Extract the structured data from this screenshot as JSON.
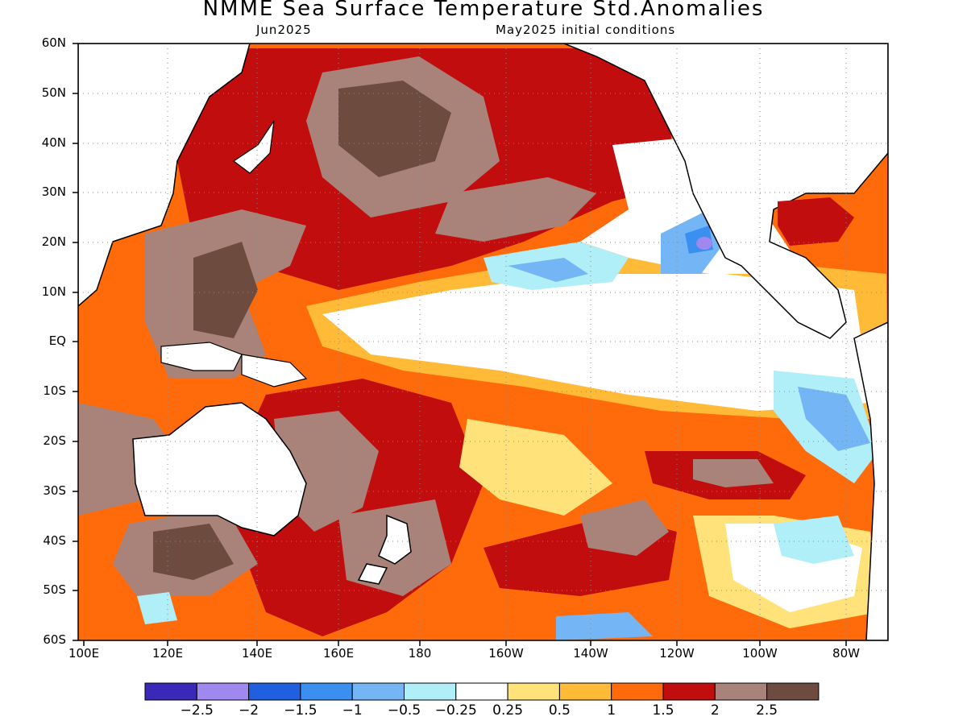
{
  "title": "NMME Sea Surface Temperature Std.Anomalies",
  "subtitle_left": "Jun2025",
  "subtitle_right": "May2025 initial conditions",
  "lat_labels": [
    "60N",
    "50N",
    "40N",
    "30N",
    "20N",
    "10N",
    "EQ",
    "10S",
    "20S",
    "30S",
    "40S",
    "50S",
    "60S"
  ],
  "lon_labels": [
    "100E",
    "120E",
    "140E",
    "160E",
    "180",
    "160W",
    "140W",
    "120W",
    "100W",
    "80W"
  ],
  "colorbar": {
    "colors": [
      "#3a28b8",
      "#9f88f0",
      "#1f5fe0",
      "#3b8ff0",
      "#74b6f5",
      "#b0eef8",
      "#ffffff",
      "#ffe27a",
      "#ffbb38",
      "#ff6a0a",
      "#c10d0d",
      "#a9837a",
      "#6e4b3f"
    ],
    "labels": [
      "−2.5",
      "−2",
      "−1.5",
      "−1",
      "−0.5",
      "−0.25",
      "0.25",
      "0.5",
      "1",
      "1.5",
      "2",
      "2.5"
    ]
  },
  "regions": {
    "warm_north_pacific": "brown",
    "west_pacific_warm_pool": "brown",
    "east_equatorial": "white",
    "cold_spot_off_baja": "purple"
  }
}
